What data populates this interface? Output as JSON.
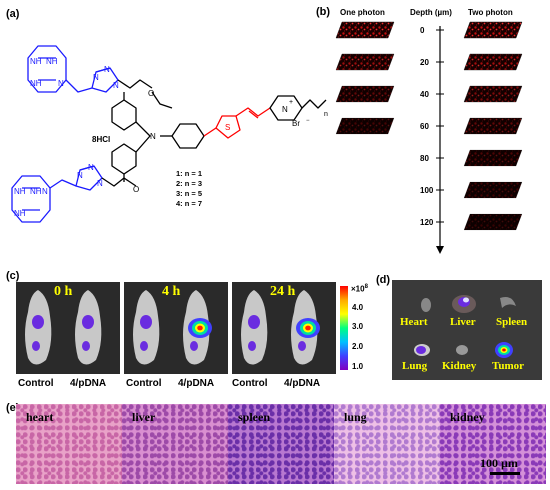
{
  "panels": {
    "a": "(a)",
    "b": "(b)",
    "c": "(c)",
    "d": "(d)",
    "e": "(e)"
  },
  "structure": {
    "salt": "8HCl",
    "counterion": "Br",
    "n_sub": "n",
    "n_values": [
      "1: n = 1",
      "2: n = 3",
      "3: n = 5",
      "4: n = 7"
    ],
    "ring_nh": "NH",
    "ring_n": "N",
    "triazole_n": "N",
    "oxygen": "O",
    "amine_n": "N",
    "sulfur": "S",
    "pyridinium_n": "N",
    "plus": "+",
    "minus": "−"
  },
  "panel_b": {
    "one_photon": "One photon",
    "two_photon": "Two photon",
    "depth_label": "Depth (µm)",
    "depths": [
      "0",
      "20",
      "40",
      "60",
      "80",
      "100",
      "120"
    ],
    "one_photon_levels": [
      0.95,
      0.75,
      0.45,
      0.3
    ],
    "two_photon_levels": [
      0.95,
      0.8,
      0.6,
      0.45,
      0.35,
      0.28,
      0.22
    ]
  },
  "panel_c": {
    "times": [
      "0 h",
      "4 h",
      "24 h"
    ],
    "groups": [
      "Control",
      "4/pDNA"
    ],
    "colorbar_title": "×10",
    "colorbar_exp": "8",
    "colorbar_ticks": [
      "4.0",
      "3.0",
      "2.0",
      "1.0"
    ]
  },
  "panel_d": {
    "organs": [
      "Heart",
      "Liver",
      "Spleen",
      "Lung",
      "Kidney",
      "Tumor"
    ]
  },
  "panel_e": {
    "tissues": [
      "heart",
      "liver",
      "spleen",
      "lung",
      "kidney"
    ],
    "scale_bar": "100 µm"
  },
  "colors": {
    "blue": "#1a1aff",
    "red": "#ff0000",
    "black": "#000000",
    "yellow": "#ffff00",
    "tissue_pink": "#e8a8d8",
    "tissue_purple": "#8a4fb8"
  }
}
